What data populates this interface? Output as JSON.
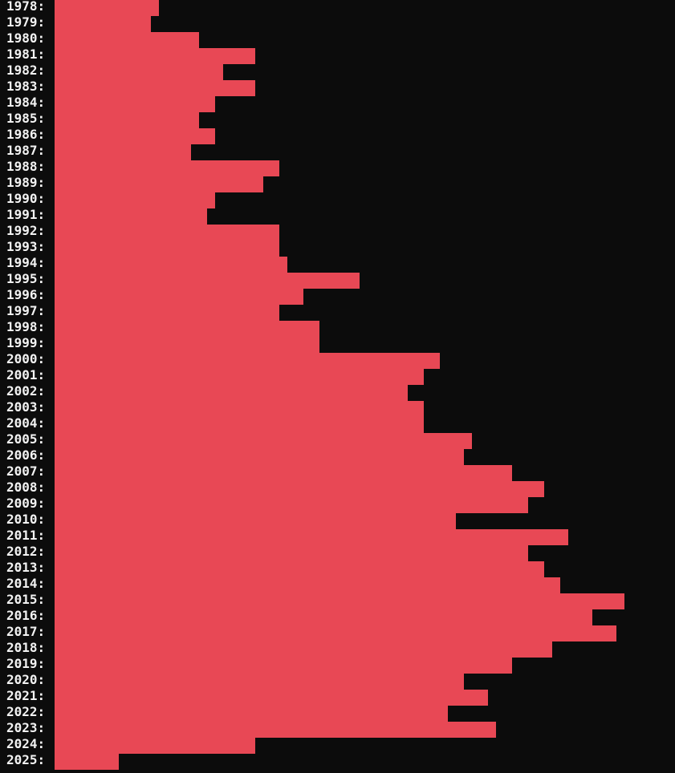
{
  "chart_data": {
    "type": "bar",
    "orientation": "horizontal",
    "categories": [
      "1978",
      "1979",
      "1980",
      "1981",
      "1982",
      "1983",
      "1984",
      "1985",
      "1986",
      "1987",
      "1988",
      "1989",
      "1990",
      "1991",
      "1992",
      "1993",
      "1994",
      "1995",
      "1996",
      "1997",
      "1998",
      "1999",
      "2000",
      "2001",
      "2002",
      "2003",
      "2004",
      "2005",
      "2006",
      "2007",
      "2008",
      "2009",
      "2010",
      "2011",
      "2012",
      "2013",
      "2014",
      "2015",
      "2016",
      "2017",
      "2018",
      "2019",
      "2020",
      "2021",
      "2022",
      "2023",
      "2024",
      "2025"
    ],
    "label_suffix": ":",
    "values": [
      13,
      12,
      18,
      25,
      21,
      25,
      20,
      18,
      20,
      17,
      28,
      26,
      20,
      19,
      28,
      28,
      29,
      38,
      31,
      28,
      33,
      33,
      48,
      46,
      44,
      46,
      46,
      52,
      51,
      57,
      61,
      59,
      50,
      64,
      59,
      61,
      63,
      71,
      67,
      70,
      62,
      57,
      51,
      54,
      49,
      55,
      25,
      8
    ],
    "xlim": [
      0,
      77.3
    ],
    "bar_color": "#e84855",
    "background_color": "#0c0c0c",
    "label_color": "#f2f2f2",
    "grid": false,
    "legend": "none"
  }
}
